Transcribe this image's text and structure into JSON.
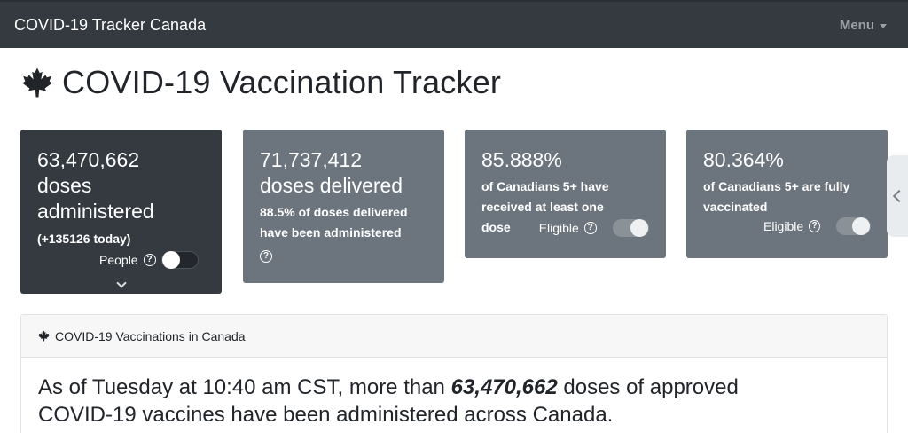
{
  "nav": {
    "brand": "COVID-19 Tracker Canada",
    "menu_label": "Menu"
  },
  "page": {
    "title": "COVID-19 Vaccination Tracker"
  },
  "cards": [
    {
      "value": "63,470,662",
      "label_line1": "doses",
      "label_line2": "administered",
      "today": "(+135126 today)",
      "toggle_label": "People",
      "toggle_on": false
    },
    {
      "value": "71,737,412",
      "label": "doses delivered",
      "sub_line1": "88.5% of doses delivered",
      "sub_line2": "have been administered"
    },
    {
      "value": "85.888%",
      "sub_line1": "of Canadians 5+ have",
      "sub_line2": "received at least one",
      "sub_line3": "dose",
      "toggle_label": "Eligible",
      "toggle_on": true
    },
    {
      "value": "80.364%",
      "sub_line1": "of Canadians 5+ are fully",
      "sub_line2": "vaccinated",
      "toggle_label": "Eligible",
      "toggle_on": true
    }
  ],
  "section": {
    "header": "COVID-19 Vaccinations in Canada",
    "text_pre": "As of Tuesday at 10:40 am CST, more than ",
    "text_bold": "63,470,662",
    "text_post_line1": " doses of approved",
    "text_line2": "COVID-19 vaccines have been administered across Canada."
  },
  "icons": {
    "title_icon": "maple-leaf-icon",
    "help_icon": "question-circle-icon",
    "collapse_icon": "chevron-down-icon",
    "side_icon": "chevron-left-icon"
  },
  "colors": {
    "navbar": "#343a40",
    "card_dark": "#343a40",
    "card_gray": "#6c757d"
  }
}
